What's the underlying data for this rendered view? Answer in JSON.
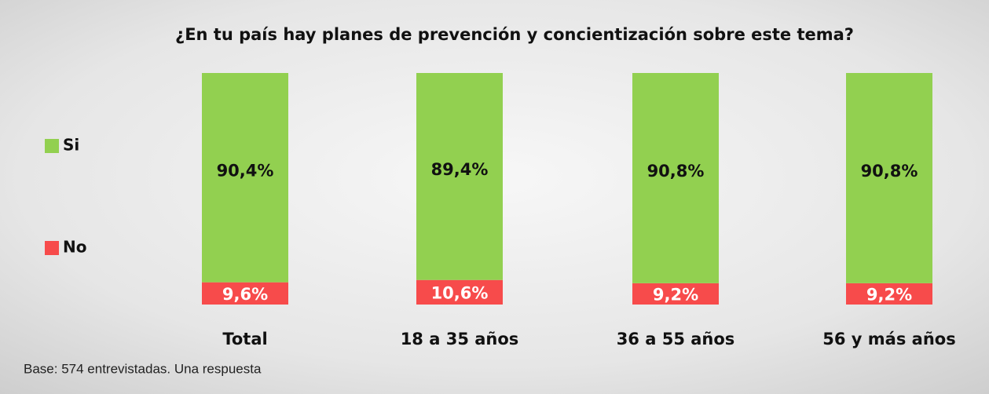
{
  "chart_data": {
    "type": "stacked_bar",
    "title": "¿En tu país hay planes de prevención y concientización sobre este tema?",
    "categories": [
      "Total",
      "18 a 35 años",
      "36 a 55 años",
      "56 y más años"
    ],
    "series": [
      {
        "name": "No",
        "color": "#f74b4b",
        "values": [
          9.6,
          10.6,
          9.2,
          9.2
        ],
        "value_labels": [
          "9,6%",
          "10,6%",
          "9,2%",
          "9,2%"
        ]
      },
      {
        "name": "Si",
        "color": "#92d050",
        "values": [
          90.4,
          89.4,
          90.8,
          90.8
        ],
        "value_labels": [
          "90,4%",
          "89,4%",
          "90,8%",
          "90,8%"
        ]
      }
    ],
    "note": "Base: 574 entrevistadas. Una respuesta"
  }
}
